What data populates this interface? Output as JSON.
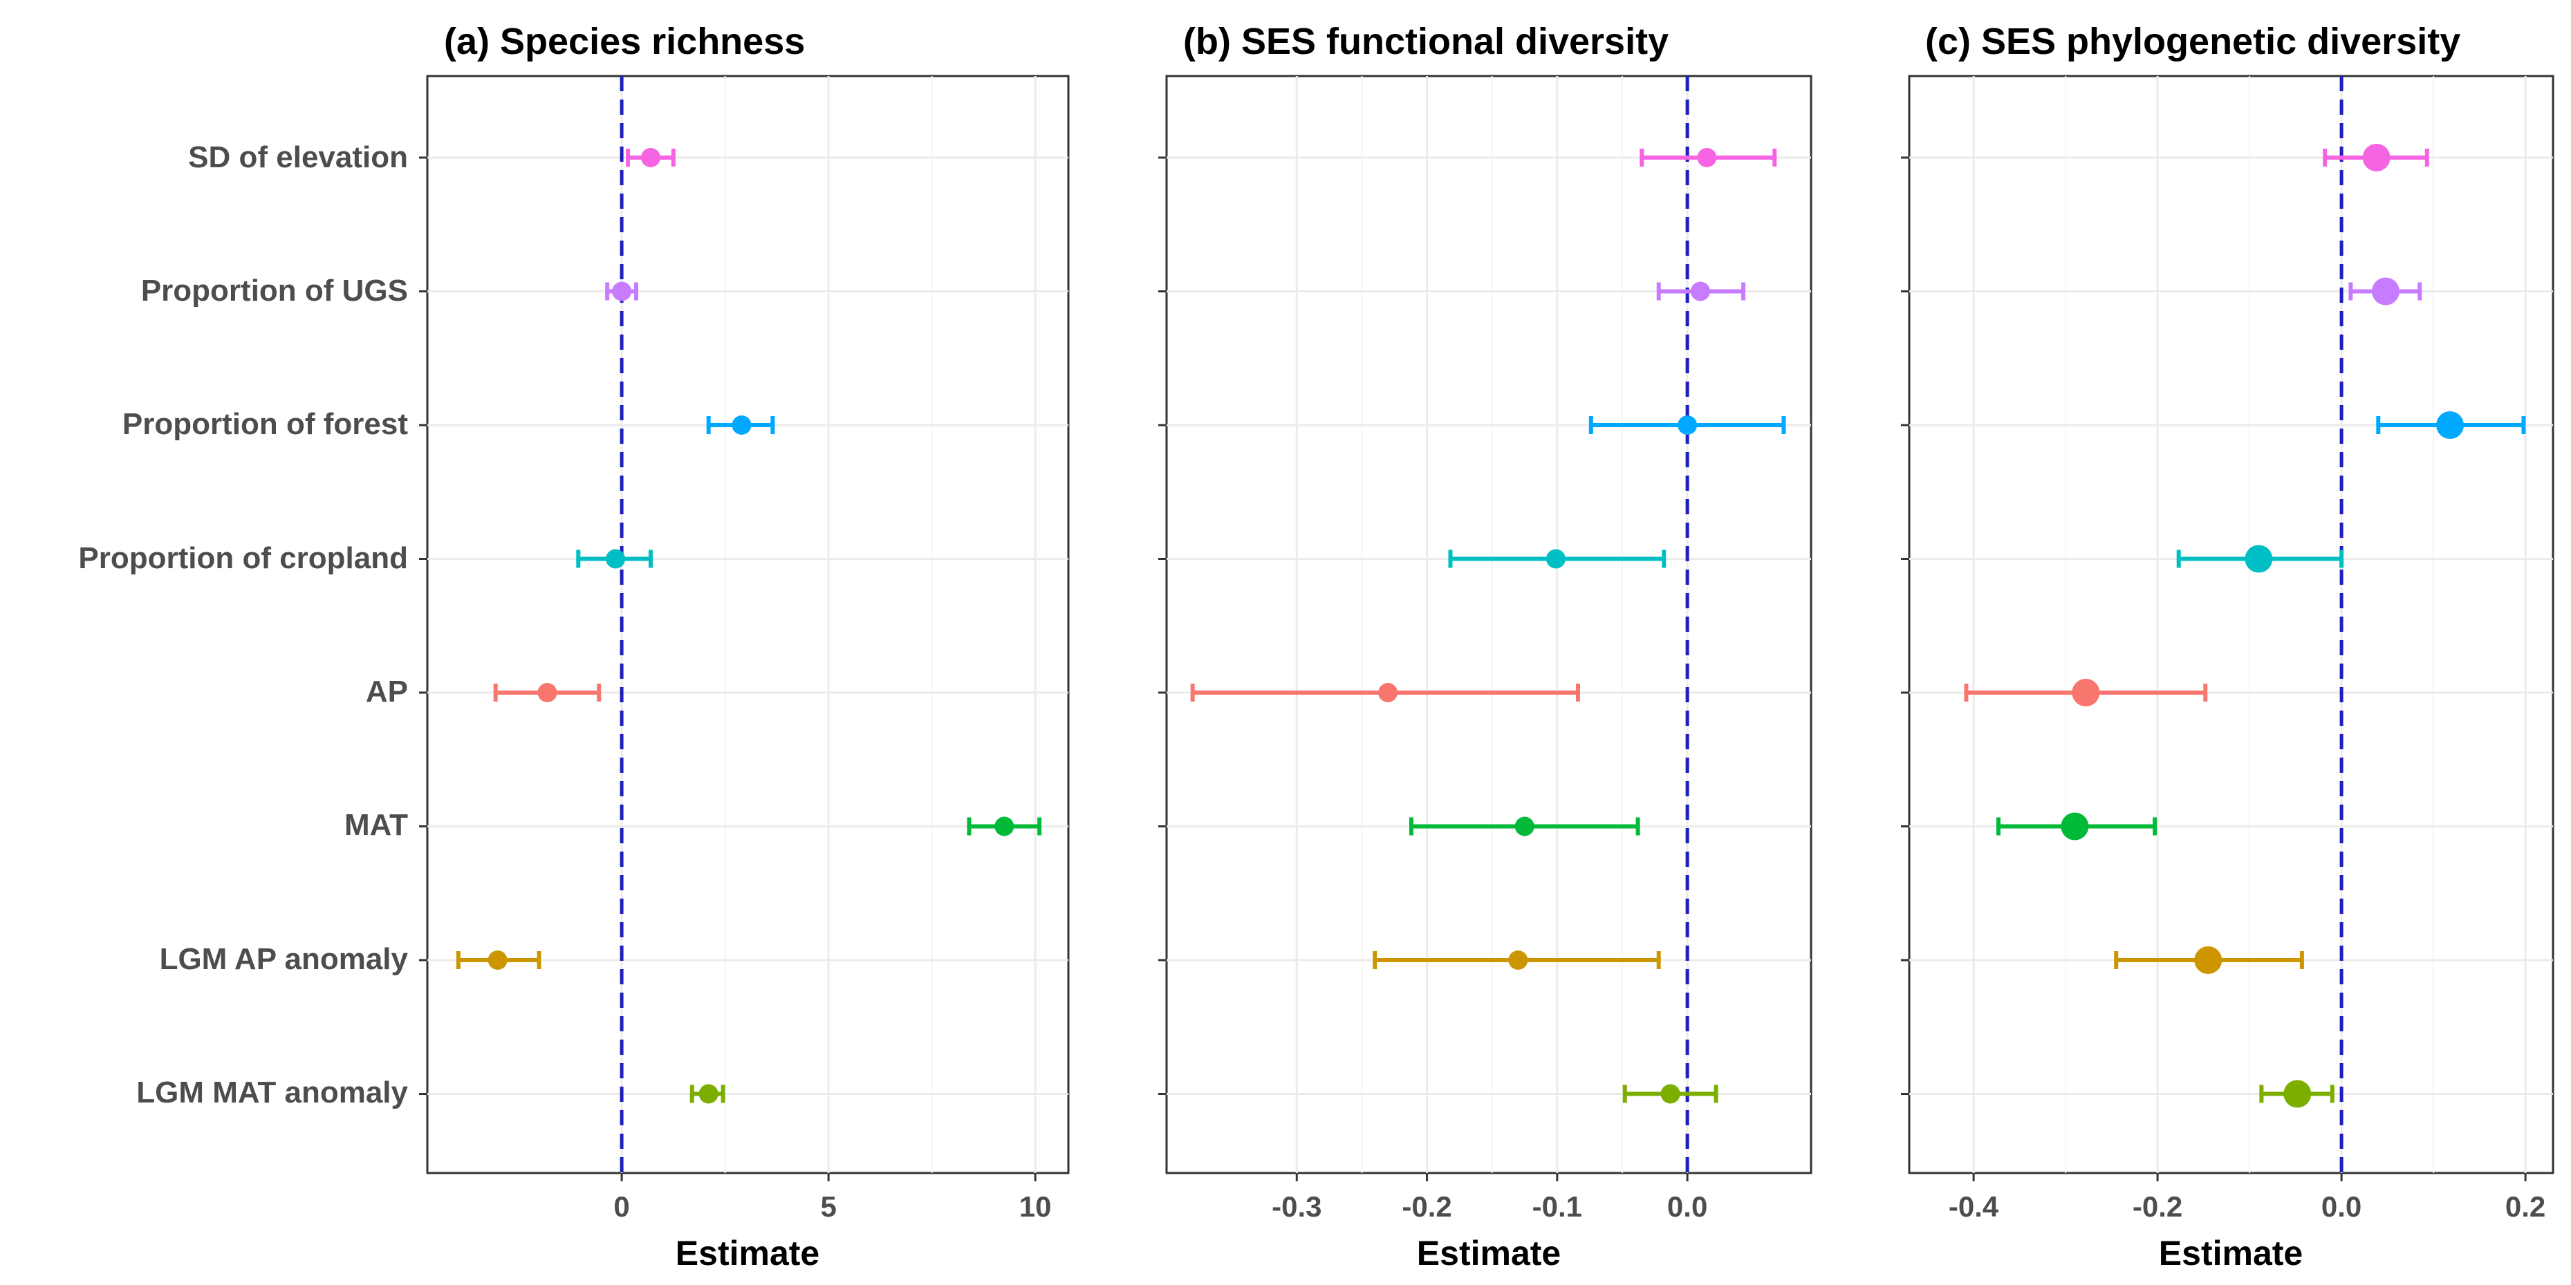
{
  "chart_data": [
    {
      "type": "forest",
      "title": "(a) Species richness",
      "xlabel": "Estimate",
      "xlim": [
        -4.7,
        10.8
      ],
      "xticks": [
        0,
        5,
        10
      ],
      "tick_labels": [
        "0",
        "5",
        "10"
      ],
      "reference_line": 0,
      "points": [
        {
          "label": "SD of elevation",
          "estimate": 0.7,
          "lower": 0.15,
          "upper": 1.25
        },
        {
          "label": "Proportion of UGS",
          "estimate": 0.0,
          "lower": -0.35,
          "upper": 0.35
        },
        {
          "label": "Proportion of forest",
          "estimate": 2.9,
          "lower": 2.1,
          "upper": 3.65
        },
        {
          "label": "Proportion of cropland",
          "estimate": -0.15,
          "lower": -1.05,
          "upper": 0.7
        },
        {
          "label": "AP",
          "estimate": -1.8,
          "lower": -3.05,
          "upper": -0.55
        },
        {
          "label": "MAT",
          "estimate": 9.25,
          "lower": 8.4,
          "upper": 10.1
        },
        {
          "label": "LGM AP anomaly",
          "estimate": -3.0,
          "lower": -3.95,
          "upper": -2.0
        },
        {
          "label": "LGM MAT anomaly",
          "estimate": 2.1,
          "lower": 1.7,
          "upper": 2.45
        }
      ]
    },
    {
      "type": "forest",
      "title": "(b) SES functional diversity",
      "xlabel": "Estimate",
      "xlim": [
        -0.4,
        0.095
      ],
      "xticks": [
        -0.3,
        -0.2,
        -0.1,
        0.0
      ],
      "tick_labels": [
        "-0.3",
        "-0.2",
        "-0.1",
        "0.0"
      ],
      "reference_line": 0,
      "points": [
        {
          "label": "SD of elevation",
          "estimate": 0.015,
          "lower": -0.035,
          "upper": 0.067
        },
        {
          "label": "Proportion of UGS",
          "estimate": 0.01,
          "lower": -0.022,
          "upper": 0.043
        },
        {
          "label": "Proportion of forest",
          "estimate": 0.0,
          "lower": -0.074,
          "upper": 0.074
        },
        {
          "label": "Proportion of cropland",
          "estimate": -0.101,
          "lower": -0.182,
          "upper": -0.018
        },
        {
          "label": "AP",
          "estimate": -0.23,
          "lower": -0.38,
          "upper": -0.084
        },
        {
          "label": "MAT",
          "estimate": -0.125,
          "lower": -0.212,
          "upper": -0.038
        },
        {
          "label": "LGM AP anomaly",
          "estimate": -0.13,
          "lower": -0.24,
          "upper": -0.022
        },
        {
          "label": "LGM MAT anomaly",
          "estimate": -0.013,
          "lower": -0.048,
          "upper": 0.022
        }
      ]
    },
    {
      "type": "forest",
      "title": "(c) SES phylogenetic diversity",
      "xlabel": "Estimate",
      "xlim": [
        -0.47,
        0.23
      ],
      "xticks": [
        -0.4,
        -0.2,
        0.0,
        0.2
      ],
      "tick_labels": [
        "-0.4",
        "-0.2",
        "0.0",
        "0.2"
      ],
      "reference_line": 0,
      "points": [
        {
          "label": "SD of elevation",
          "estimate": 0.038,
          "lower": -0.018,
          "upper": 0.093
        },
        {
          "label": "Proportion of UGS",
          "estimate": 0.048,
          "lower": 0.01,
          "upper": 0.085
        },
        {
          "label": "Proportion of forest",
          "estimate": 0.118,
          "lower": 0.04,
          "upper": 0.198
        },
        {
          "label": "Proportion of cropland",
          "estimate": -0.09,
          "lower": -0.177,
          "upper": 0.0
        },
        {
          "label": "AP",
          "estimate": -0.278,
          "lower": -0.408,
          "upper": -0.148
        },
        {
          "label": "MAT",
          "estimate": -0.29,
          "lower": -0.373,
          "upper": -0.203
        },
        {
          "label": "LGM AP anomaly",
          "estimate": -0.145,
          "lower": -0.245,
          "upper": -0.043
        },
        {
          "label": "LGM MAT anomaly",
          "estimate": -0.048,
          "lower": -0.087,
          "upper": -0.01
        }
      ]
    }
  ],
  "colors": {
    "SD of elevation": "#f564e3",
    "Proportion of UGS": "#c77cff",
    "Proportion of forest": "#00a9ff",
    "Proportion of cropland": "#00bfc4",
    "AP": "#f8766d",
    "MAT": "#00ba38",
    "LGM AP anomaly": "#cd9600",
    "LGM MAT anomaly": "#7cae00",
    "reference_line": "#1f1fbf",
    "grid": "#ebebeb",
    "panel_border": "#333333"
  }
}
